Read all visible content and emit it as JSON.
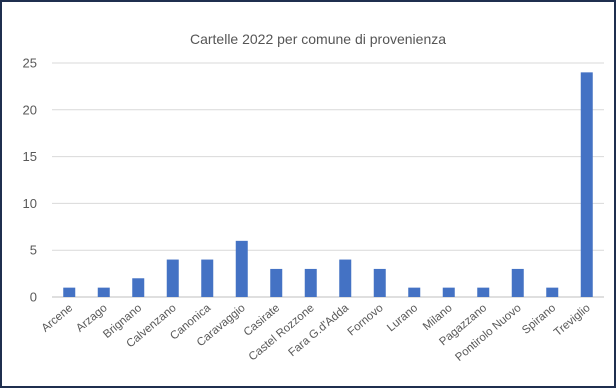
{
  "chart_data": {
    "type": "bar",
    "title": "Cartelle 2022 per comune di provenienza",
    "xlabel": "",
    "ylabel": "",
    "ylim": [
      0,
      25
    ],
    "yticks": [
      0,
      5,
      10,
      15,
      20,
      25
    ],
    "grid": true,
    "legend": "none",
    "bar_color": "#4472c4",
    "categories": [
      "Arcene",
      "Arzago",
      "Brignano",
      "Calvenzano",
      "Canonica",
      "Caravaggio",
      "Casirate",
      "Castel Rozzone",
      "Fara G.d'Adda",
      "Fornovo",
      "Lurano",
      "Milano",
      "Pagazzano",
      "Pontirolo Nuovo",
      "Spirano",
      "Treviglio"
    ],
    "values": [
      1,
      1,
      2,
      4,
      4,
      6,
      3,
      3,
      4,
      3,
      1,
      1,
      1,
      3,
      1,
      24
    ]
  }
}
